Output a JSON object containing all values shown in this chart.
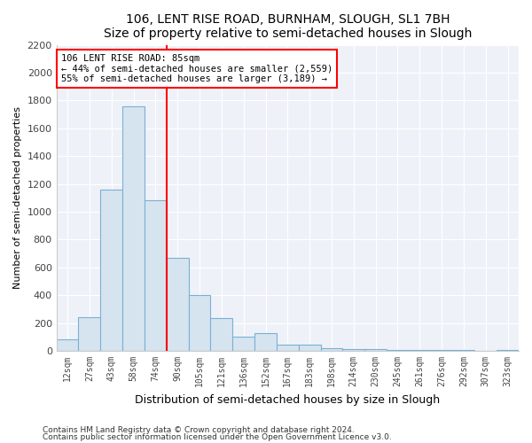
{
  "title": "106, LENT RISE ROAD, BURNHAM, SLOUGH, SL1 7BH",
  "subtitle": "Size of property relative to semi-detached houses in Slough",
  "xlabel": "Distribution of semi-detached houses by size in Slough",
  "ylabel": "Number of semi-detached properties",
  "categories": [
    "12sqm",
    "27sqm",
    "43sqm",
    "58sqm",
    "74sqm",
    "90sqm",
    "105sqm",
    "121sqm",
    "136sqm",
    "152sqm",
    "167sqm",
    "183sqm",
    "198sqm",
    "214sqm",
    "230sqm",
    "245sqm",
    "261sqm",
    "276sqm",
    "292sqm",
    "307sqm",
    "323sqm"
  ],
  "values": [
    80,
    240,
    1160,
    1760,
    1080,
    670,
    400,
    235,
    100,
    130,
    45,
    45,
    20,
    15,
    10,
    8,
    6,
    5,
    4,
    3,
    8
  ],
  "bar_color": "#d6e4f0",
  "bar_edge_color": "#7ab0d4",
  "annotation_text": "106 LENT RISE ROAD: 85sqm\n← 44% of semi-detached houses are smaller (2,559)\n55% of semi-detached houses are larger (3,189) →",
  "vline_x": 4.5,
  "ylim": [
    0,
    2200
  ],
  "yticks": [
    0,
    200,
    400,
    600,
    800,
    1000,
    1200,
    1400,
    1600,
    1800,
    2000,
    2200
  ],
  "footnote1": "Contains HM Land Registry data © Crown copyright and database right 2024.",
  "footnote2": "Contains public sector information licensed under the Open Government Licence v3.0.",
  "bg_color": "#ffffff",
  "plot_bg_color": "#eef2f8"
}
